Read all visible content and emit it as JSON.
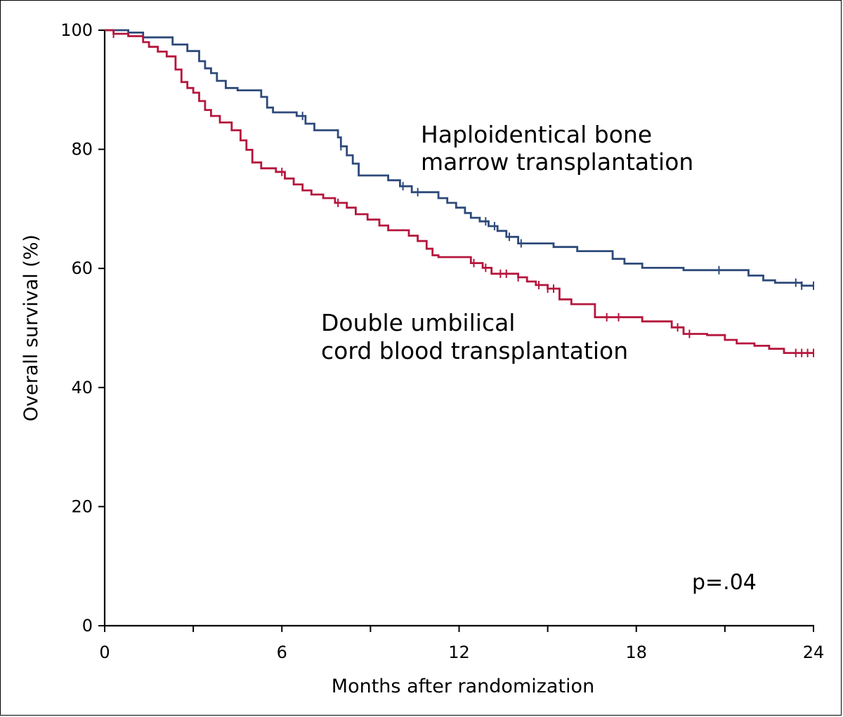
{
  "chart_data": {
    "type": "line",
    "title": "",
    "xlabel": "Months after randomization",
    "ylabel": "Overall survival (%)",
    "xlim": [
      0,
      24
    ],
    "ylim": [
      0,
      100
    ],
    "x_ticks": [
      0,
      3,
      6,
      9,
      12,
      15,
      18,
      21,
      24
    ],
    "x_tick_labels": [
      "0",
      "",
      "6",
      "",
      "12",
      "",
      "18",
      "",
      "24"
    ],
    "y_ticks": [
      0,
      20,
      40,
      60,
      80,
      100
    ],
    "y_tick_labels": [
      "0",
      "20",
      "40",
      "60",
      "80",
      "100"
    ],
    "grid": false,
    "legend": "none",
    "annotations": [
      {
        "lines": [
          "Haploidentical bone",
          "marrow transplantation"
        ],
        "series": "haplo"
      },
      {
        "lines": [
          "Double umbilical",
          "cord blood transplantation"
        ],
        "series": "cord"
      },
      {
        "lines": [
          "p=.04"
        ],
        "series": ""
      }
    ],
    "series": [
      {
        "id": "haplo",
        "color": "#2e4a7a",
        "x": [
          0,
          0.8,
          1.3,
          2.3,
          2.8,
          3.2,
          3.4,
          3.6,
          3.8,
          4.1,
          4.3,
          4.5,
          5.3,
          5.5,
          5.7,
          6.5,
          6.8,
          7.1,
          7.3,
          7.9,
          8.0,
          8.2,
          8.4,
          8.6,
          8.9,
          9.2,
          9.6,
          10.0,
          10.4,
          10.8,
          11.3,
          11.6,
          11.9,
          12.2,
          12.4,
          12.7,
          13.0,
          13.3,
          13.6,
          14.0,
          14.4,
          14.8,
          15.2,
          15.6,
          16.0,
          16.4,
          17.2,
          17.6,
          18.2,
          18.6,
          19.0,
          19.6,
          20.3,
          21.0,
          21.8,
          22.3,
          22.7,
          23.4,
          23.6,
          24.0
        ],
        "y": [
          100,
          99.6,
          98.8,
          97.6,
          96.5,
          94.8,
          93.6,
          92.8,
          91.5,
          90.3,
          90.3,
          89.9,
          88.8,
          87.0,
          86.2,
          85.6,
          84.3,
          83.2,
          83.2,
          82.0,
          80.5,
          79.0,
          77.6,
          75.6,
          75.6,
          75.6,
          74.8,
          73.8,
          72.8,
          72.8,
          71.8,
          71.0,
          70.2,
          69.3,
          68.5,
          67.9,
          67.1,
          66.3,
          65.3,
          64.2,
          64.2,
          64.2,
          63.6,
          63.6,
          62.9,
          62.9,
          61.6,
          60.8,
          60.1,
          60.1,
          60.1,
          59.7,
          59.7,
          59.7,
          58.8,
          58.0,
          57.6,
          57.6,
          57.1,
          57.1
        ],
        "censor_x": [
          6.7,
          8.0,
          10.1,
          10.6,
          12.9,
          13.2,
          13.7,
          14.1,
          20.8,
          23.4,
          23.6,
          24.0
        ]
      },
      {
        "id": "cord",
        "color": "#b5163c",
        "x": [
          0,
          0.3,
          0.8,
          1.3,
          1.5,
          1.8,
          2.1,
          2.4,
          2.6,
          2.8,
          3.0,
          3.2,
          3.4,
          3.6,
          3.9,
          4.3,
          4.6,
          4.8,
          5.0,
          5.3,
          5.5,
          5.8,
          6.1,
          6.4,
          6.7,
          7.0,
          7.4,
          7.8,
          8.2,
          8.5,
          8.9,
          9.3,
          9.6,
          10.3,
          10.6,
          10.9,
          11.1,
          11.3,
          12.2,
          12.4,
          12.8,
          13.1,
          13.4,
          14.0,
          14.3,
          14.6,
          15.0,
          15.4,
          15.8,
          16.2,
          16.6,
          17.0,
          17.4,
          18.2,
          18.6,
          19.2,
          19.6,
          20.0,
          20.4,
          21.0,
          21.4,
          22.0,
          22.5,
          23.0,
          23.4,
          24.0
        ],
        "y": [
          100,
          99.4,
          99.0,
          98.0,
          97.2,
          96.4,
          95.6,
          93.4,
          91.3,
          90.3,
          89.5,
          88.1,
          86.6,
          85.6,
          84.5,
          83.2,
          81.5,
          79.9,
          77.8,
          76.8,
          76.8,
          76.2,
          75.1,
          74.1,
          73.1,
          72.4,
          71.8,
          71.0,
          70.2,
          69.1,
          68.2,
          67.2,
          66.4,
          65.5,
          64.6,
          63.3,
          62.2,
          61.9,
          61.9,
          60.9,
          60.1,
          59.1,
          59.1,
          58.5,
          57.8,
          57.2,
          56.6,
          54.8,
          54.0,
          54.0,
          51.8,
          51.8,
          51.8,
          51.1,
          51.1,
          50.1,
          49.0,
          49.0,
          48.8,
          48.0,
          47.4,
          47.0,
          46.5,
          45.8,
          45.8,
          45.8
        ],
        "censor_x": [
          0.3,
          6.0,
          7.9,
          12.5,
          12.9,
          13.4,
          13.6,
          14.0,
          14.7,
          15.0,
          15.2,
          17.0,
          17.4,
          19.4,
          19.8,
          23.4,
          23.6,
          23.8,
          24.0
        ]
      }
    ]
  }
}
